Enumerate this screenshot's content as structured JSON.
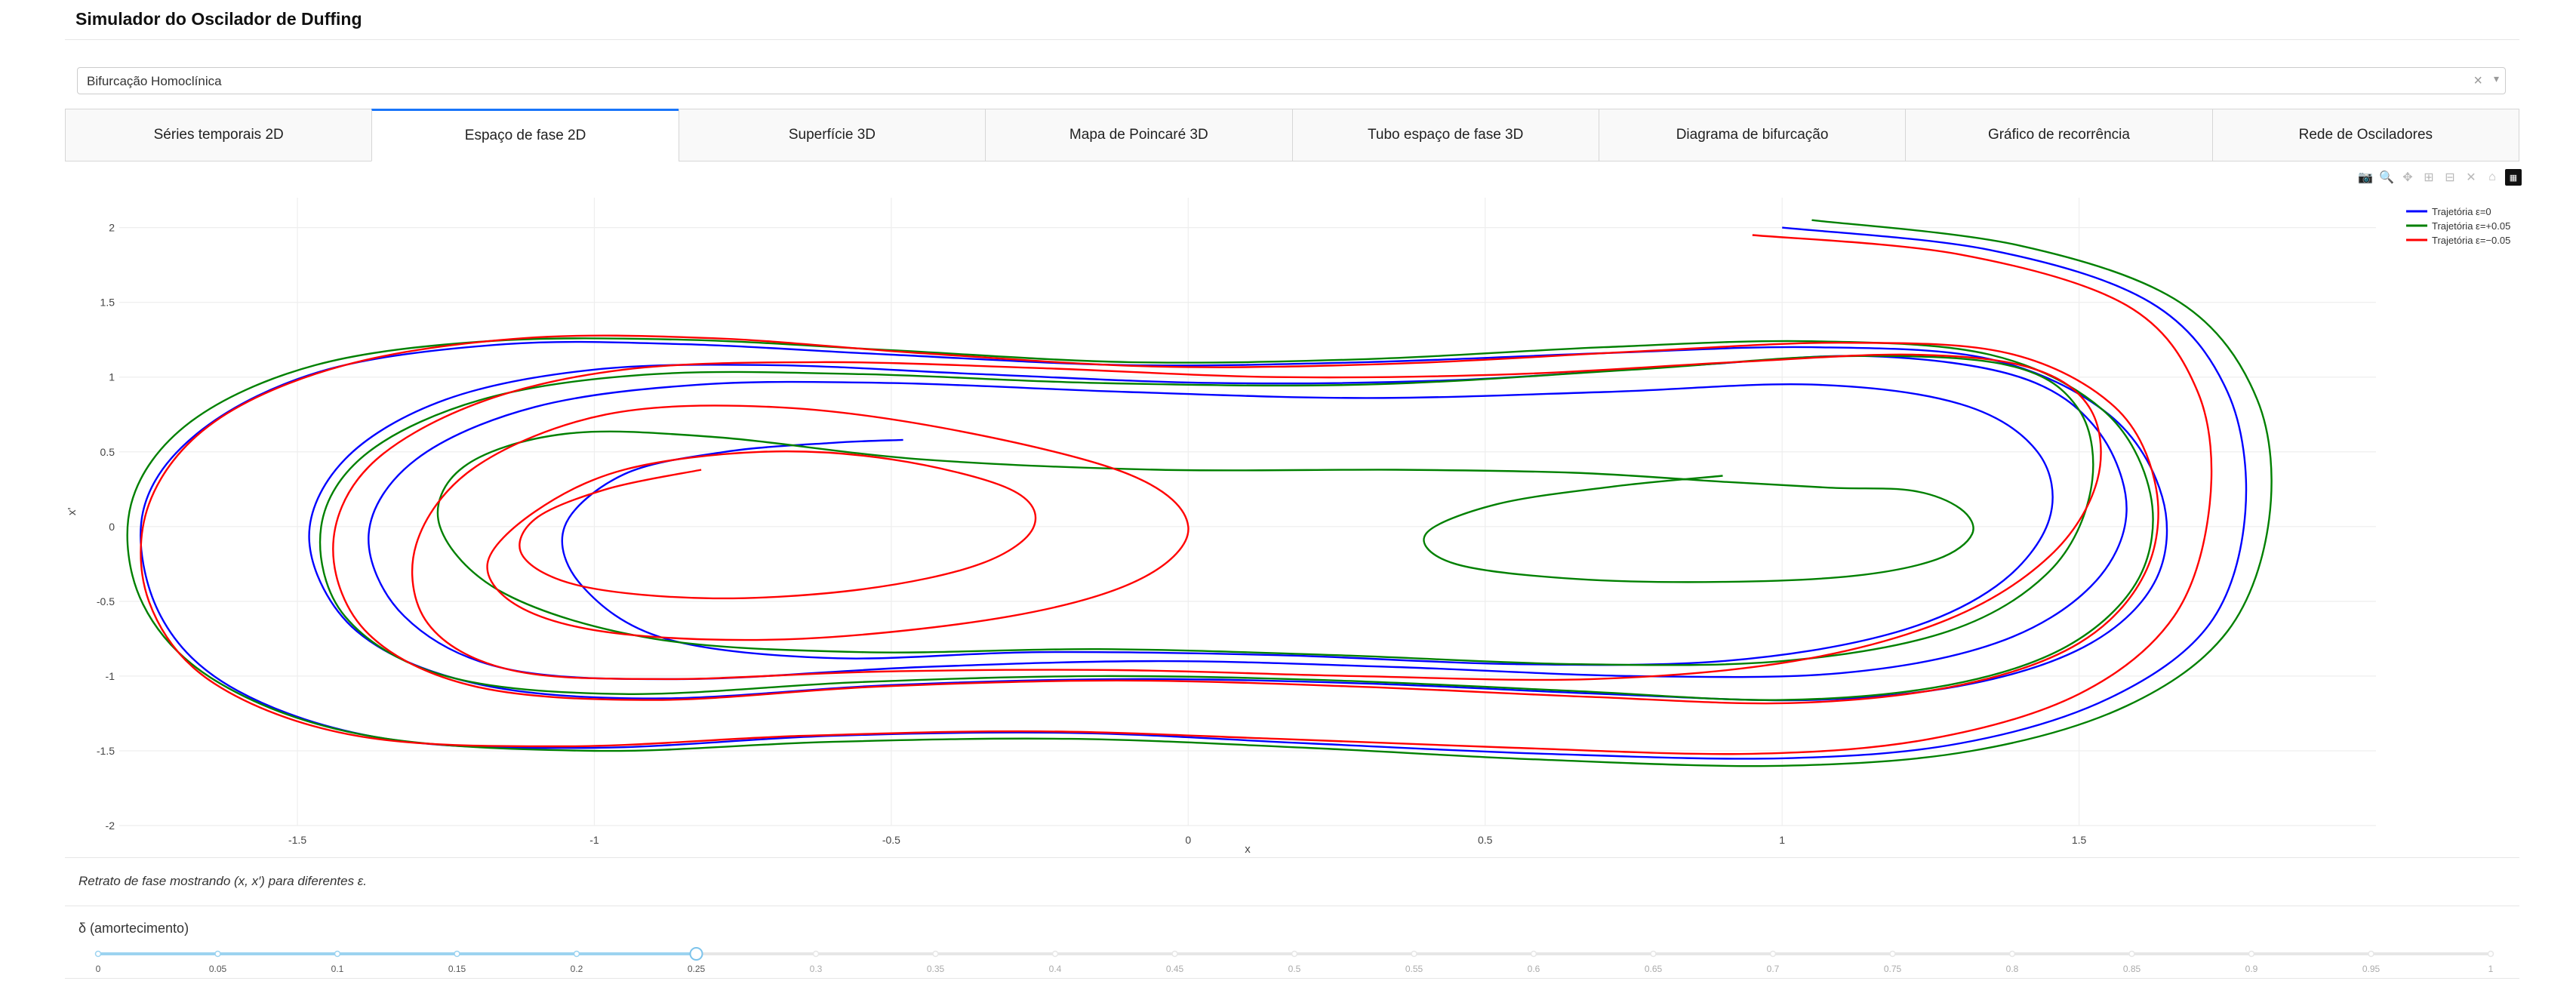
{
  "app": {
    "title": "Simulador do Oscilador de Duffing"
  },
  "dropdown": {
    "value": "Bifurcação Homoclínica",
    "clear_icon": "×",
    "arrow_icon": "▾"
  },
  "tabs": [
    {
      "label": "Séries temporais 2D",
      "active": false
    },
    {
      "label": "Espaço de fase 2D",
      "active": true
    },
    {
      "label": "Superfície 3D",
      "active": false
    },
    {
      "label": "Mapa de Poincaré 3D",
      "active": false
    },
    {
      "label": "Tubo espaço de fase 3D",
      "active": false
    },
    {
      "label": "Diagrama de bifurcação",
      "active": false
    },
    {
      "label": "Gráfico de recorrência",
      "active": false
    },
    {
      "label": "Rede de Osciladores",
      "active": false
    }
  ],
  "modebar": [
    {
      "icon": "camera-icon",
      "glyph": "📷"
    },
    {
      "icon": "zoom-icon",
      "glyph": "🔍"
    },
    {
      "icon": "pan-icon",
      "glyph": "✥"
    },
    {
      "icon": "zoom-in-icon",
      "glyph": "⊞"
    },
    {
      "icon": "zoom-out-icon",
      "glyph": "⊟"
    },
    {
      "icon": "autoscale-icon",
      "glyph": "✕"
    },
    {
      "icon": "home-icon",
      "glyph": "⌂"
    },
    {
      "icon": "plotly-logo-icon",
      "glyph": "▦"
    }
  ],
  "chart_data": {
    "type": "line",
    "title": "",
    "xlabel": "x",
    "ylabel": "x'",
    "xlim": [
      -1.8,
      2.0
    ],
    "ylim": [
      -2.0,
      2.2
    ],
    "xticks": [
      -1.5,
      -1,
      -0.5,
      0,
      0.5,
      1,
      1.5
    ],
    "yticks": [
      -2,
      -1.5,
      -1,
      -0.5,
      0,
      0.5,
      1,
      1.5,
      2
    ],
    "grid": true,
    "legend_position": "top-right",
    "series": [
      {
        "name": "Trajetória ε=0",
        "color": "#0000ff",
        "x": [
          1.0,
          1.35,
          1.62,
          1.75,
          1.78,
          1.72,
          1.55,
          1.3,
          1.0,
          0.6,
          0.2,
          -0.2,
          -0.6,
          -1.0,
          -1.35,
          -1.6,
          -1.73,
          -1.76,
          -1.66,
          -1.45,
          -1.15,
          -0.85,
          -0.5,
          -0.1,
          0.3,
          0.7,
          1.05,
          1.35,
          1.55,
          1.64,
          1.63,
          1.52,
          1.32,
          1.05,
          0.7,
          0.3,
          -0.1,
          -0.5,
          -0.9,
          -1.2,
          -1.4,
          -1.48,
          -1.42,
          -1.25,
          -1.0,
          -0.7,
          -0.35,
          0.05,
          0.45,
          0.85,
          1.15,
          1.4,
          1.53,
          1.58,
          1.52,
          1.36,
          1.1,
          0.75,
          0.35,
          -0.05,
          -0.45,
          -0.85,
          -1.15,
          -1.32,
          -1.38,
          -1.3,
          -1.1,
          -0.82,
          -0.5,
          -0.1,
          0.3,
          0.7,
          1.05,
          1.3,
          1.43,
          1.45,
          1.36,
          1.18,
          0.9,
          0.55,
          0.15,
          -0.25,
          -0.6,
          -0.88,
          -1.02,
          -1.05,
          -0.95,
          -0.78,
          -0.6,
          -0.48
        ],
        "y": [
          2.0,
          1.85,
          1.5,
          0.9,
          0.1,
          -0.65,
          -1.15,
          -1.45,
          -1.55,
          -1.52,
          -1.45,
          -1.38,
          -1.4,
          -1.48,
          -1.42,
          -1.1,
          -0.6,
          0.1,
          0.65,
          1.05,
          1.22,
          1.22,
          1.15,
          1.08,
          1.1,
          1.16,
          1.2,
          1.12,
          0.75,
          0.2,
          -0.35,
          -0.78,
          -1.05,
          -1.16,
          -1.12,
          -1.05,
          -1.02,
          -1.06,
          -1.15,
          -1.05,
          -0.7,
          -0.1,
          0.45,
          0.85,
          1.05,
          1.08,
          1.02,
          0.96,
          0.98,
          1.08,
          1.14,
          1.0,
          0.65,
          0.1,
          -0.4,
          -0.78,
          -0.98,
          -1.0,
          -0.94,
          -0.9,
          -0.94,
          -1.02,
          -0.95,
          -0.6,
          -0.05,
          0.45,
          0.8,
          0.95,
          0.96,
          0.9,
          0.86,
          0.9,
          0.95,
          0.82,
          0.5,
          0.05,
          -0.4,
          -0.72,
          -0.9,
          -0.92,
          -0.86,
          -0.84,
          -0.88,
          -0.75,
          -0.4,
          0.0,
          0.35,
          0.5,
          0.56,
          0.58
        ]
      },
      {
        "name": "Trajetória ε=+0.05",
        "color": "#008000",
        "x": [
          1.05,
          1.4,
          1.67,
          1.8,
          1.82,
          1.75,
          1.58,
          1.32,
          1.0,
          0.6,
          0.2,
          -0.2,
          -0.6,
          -1.0,
          -1.38,
          -1.63,
          -1.76,
          -1.78,
          -1.68,
          -1.47,
          -1.18,
          -0.85,
          -0.5,
          -0.1,
          0.3,
          0.7,
          1.05,
          1.35,
          1.54,
          1.62,
          1.6,
          1.48,
          1.28,
          1.0,
          0.65,
          0.25,
          -0.15,
          -0.55,
          -0.95,
          -1.25,
          -1.42,
          -1.46,
          -1.38,
          -1.18,
          -0.9,
          -0.55,
          -0.15,
          0.3,
          0.75,
          1.1,
          1.38,
          1.5,
          1.52,
          1.45,
          1.28,
          1.0,
          0.65,
          0.25,
          -0.15,
          -0.55,
          -0.9,
          -1.15,
          -1.26,
          -1.22,
          -1.05,
          -0.8,
          -0.45,
          -0.05,
          0.35,
          0.65,
          0.9,
          1.08,
          1.22,
          1.3,
          1.32,
          1.26,
          1.12,
          0.9,
          0.65,
          0.45,
          0.4,
          0.52,
          0.72,
          0.9
        ],
        "y": [
          2.05,
          1.88,
          1.5,
          0.85,
          0.05,
          -0.7,
          -1.2,
          -1.5,
          -1.6,
          -1.56,
          -1.48,
          -1.42,
          -1.44,
          -1.5,
          -1.4,
          -1.05,
          -0.52,
          0.15,
          0.7,
          1.08,
          1.24,
          1.25,
          1.18,
          1.1,
          1.12,
          1.2,
          1.24,
          1.15,
          0.78,
          0.22,
          -0.35,
          -0.8,
          -1.06,
          -1.16,
          -1.1,
          -1.03,
          -1.0,
          -1.04,
          -1.12,
          -1.0,
          -0.6,
          0.0,
          0.5,
          0.86,
          1.02,
          1.02,
          0.96,
          0.95,
          1.05,
          1.14,
          1.08,
          0.78,
          0.25,
          -0.3,
          -0.7,
          -0.9,
          -0.92,
          -0.86,
          -0.82,
          -0.84,
          -0.75,
          -0.45,
          0.0,
          0.4,
          0.62,
          0.6,
          0.45,
          0.38,
          0.38,
          0.36,
          0.3,
          0.26,
          0.24,
          0.12,
          -0.05,
          -0.22,
          -0.33,
          -0.37,
          -0.35,
          -0.25,
          -0.05,
          0.15,
          0.27,
          0.34
        ]
      },
      {
        "name": "Trajetória ε=−0.05",
        "color": "#ff0000",
        "x": [
          0.95,
          1.3,
          1.58,
          1.7,
          1.72,
          1.66,
          1.5,
          1.25,
          0.95,
          0.55,
          0.15,
          -0.25,
          -0.65,
          -1.05,
          -1.4,
          -1.64,
          -1.75,
          -1.75,
          -1.64,
          -1.42,
          -1.12,
          -0.8,
          -0.45,
          -0.05,
          0.35,
          0.75,
          1.1,
          1.38,
          1.56,
          1.63,
          1.61,
          1.5,
          1.3,
          1.02,
          0.68,
          0.28,
          -0.12,
          -0.52,
          -0.9,
          -1.2,
          -1.38,
          -1.44,
          -1.38,
          -1.2,
          -0.95,
          -0.62,
          -0.25,
          0.15,
          0.55,
          0.92,
          1.22,
          1.42,
          1.52,
          1.53,
          1.45,
          1.28,
          1.02,
          0.68,
          0.28,
          -0.12,
          -0.52,
          -0.88,
          -1.14,
          -1.28,
          -1.3,
          -1.2,
          -0.98,
          -0.7,
          -0.4,
          -0.1,
          0.0,
          -0.08,
          -0.3,
          -0.65,
          -0.95,
          -1.12,
          -1.18,
          -1.1,
          -0.95,
          -0.72,
          -0.5,
          -0.3,
          -0.26,
          -0.35,
          -0.55,
          -0.8,
          -1.02,
          -1.12,
          -1.1,
          -0.98,
          -0.82
        ],
        "y": [
          1.95,
          1.82,
          1.48,
          0.9,
          0.15,
          -0.6,
          -1.12,
          -1.42,
          -1.52,
          -1.48,
          -1.42,
          -1.37,
          -1.4,
          -1.47,
          -1.4,
          -1.05,
          -0.5,
          0.15,
          0.7,
          1.08,
          1.26,
          1.26,
          1.16,
          1.07,
          1.09,
          1.17,
          1.23,
          1.16,
          0.8,
          0.25,
          -0.32,
          -0.78,
          -1.06,
          -1.18,
          -1.14,
          -1.07,
          -1.03,
          -1.07,
          -1.16,
          -1.07,
          -0.72,
          -0.15,
          0.4,
          0.82,
          1.05,
          1.1,
          1.06,
          1.0,
          1.02,
          1.1,
          1.15,
          1.06,
          0.78,
          0.3,
          -0.2,
          -0.62,
          -0.9,
          -1.02,
          -1.0,
          -0.96,
          -0.97,
          -1.02,
          -0.96,
          -0.65,
          -0.12,
          0.4,
          0.75,
          0.8,
          0.65,
          0.35,
          0.0,
          -0.35,
          -0.6,
          -0.75,
          -0.72,
          -0.55,
          -0.25,
          0.1,
          0.38,
          0.5,
          0.45,
          0.25,
          0.0,
          -0.25,
          -0.42,
          -0.48,
          -0.4,
          -0.2,
          0.05,
          0.25,
          0.38
        ]
      }
    ]
  },
  "caption": "Retrato de fase mostrando (x, x′) para diferentes ε.",
  "slider": {
    "label": "δ (amortecimento)",
    "value": 0.25,
    "min": 0,
    "max": 1,
    "marks": [
      "0",
      "0.05",
      "0.1",
      "0.15",
      "0.2",
      "0.25",
      "0.3",
      "0.35",
      "0.4",
      "0.45",
      "0.5",
      "0.55",
      "0.6",
      "0.65",
      "0.7",
      "0.75",
      "0.8",
      "0.85",
      "0.9",
      "0.95",
      "1"
    ],
    "active_color": "#9cd3f0",
    "inactive_color": "#e6e6e6"
  }
}
